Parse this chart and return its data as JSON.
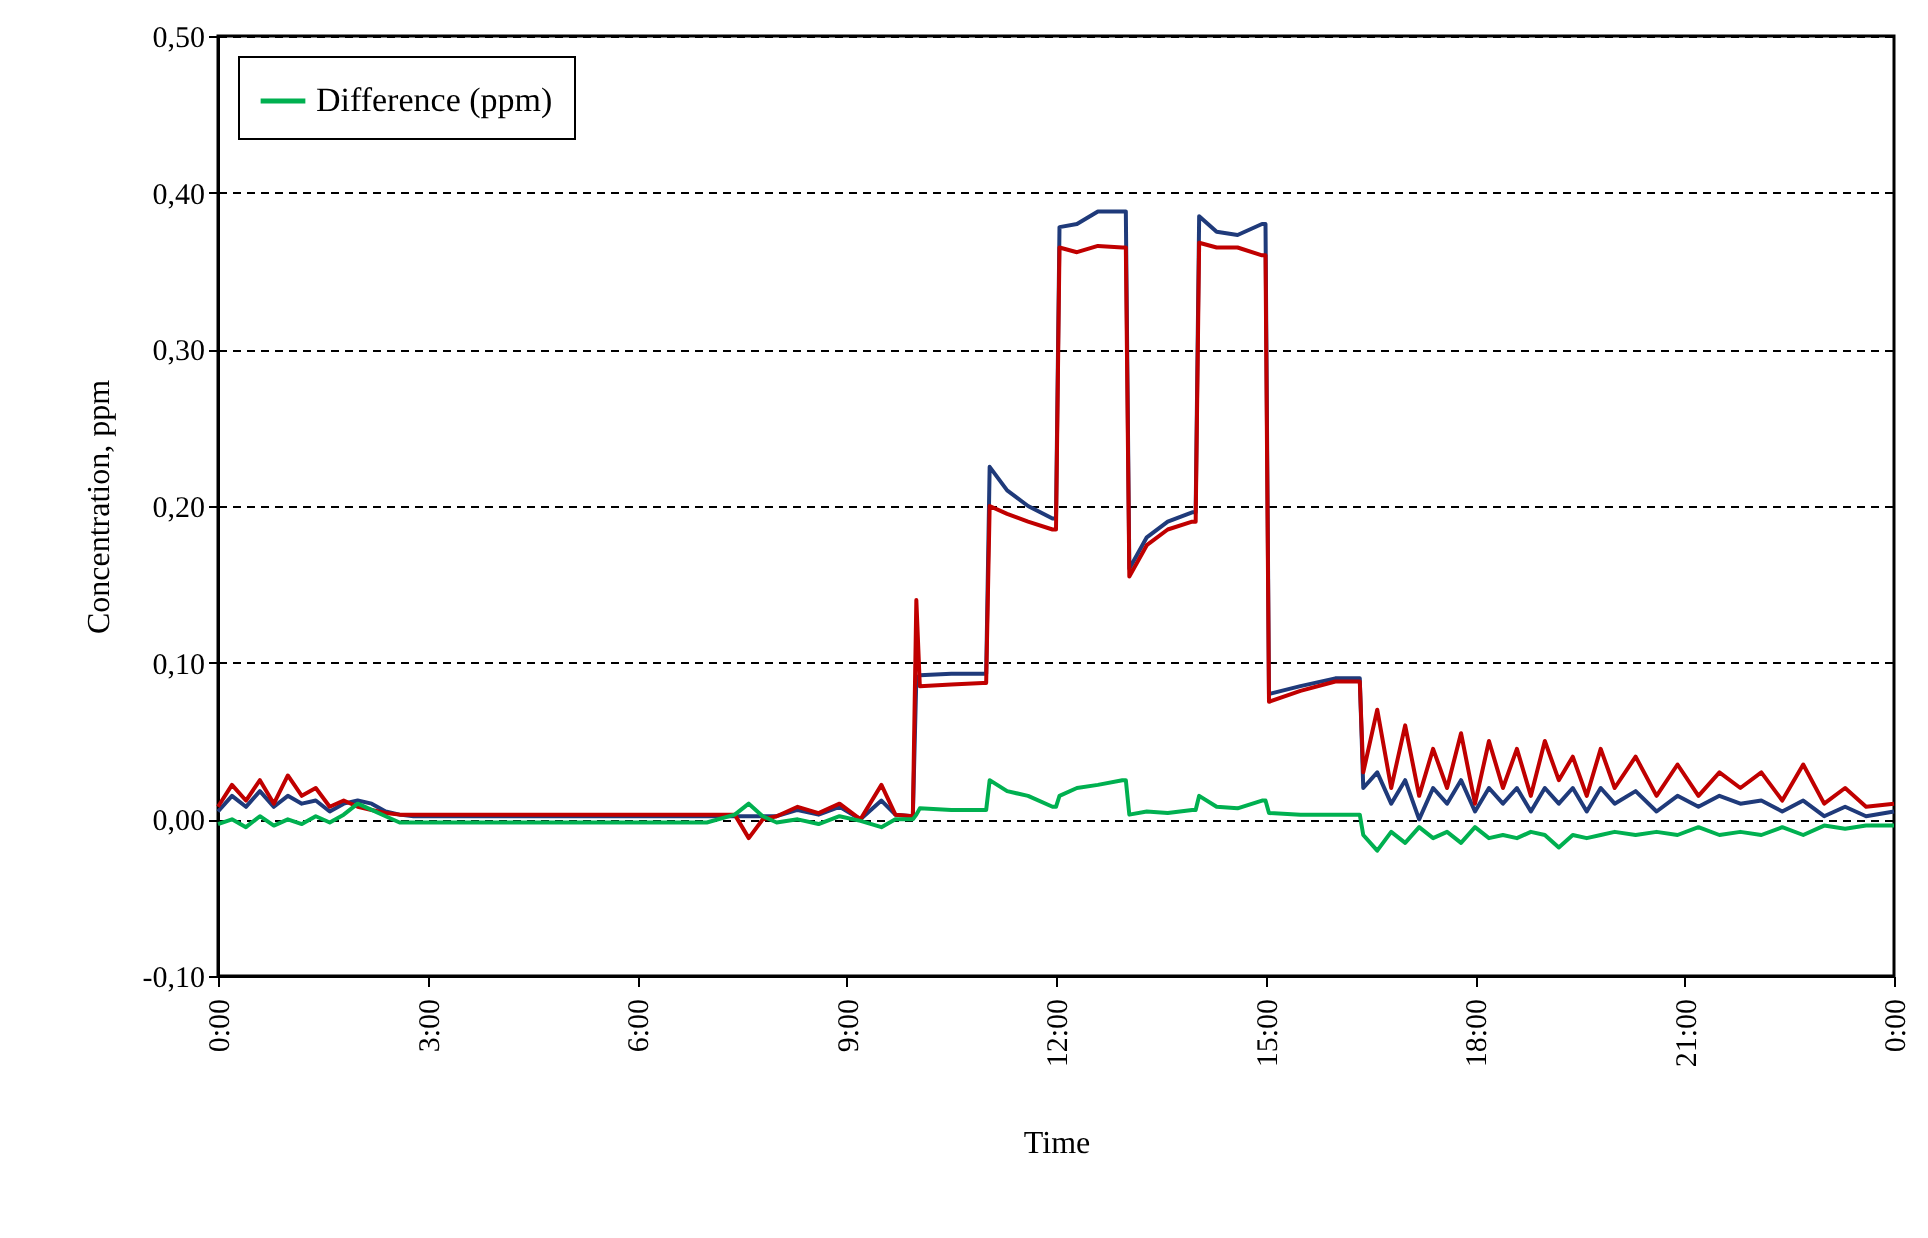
{
  "chart_data": {
    "type": "line",
    "xlabel": "Time",
    "ylabel": "Concentration, ppm",
    "x": [
      0,
      0.2,
      0.4,
      0.6,
      0.8,
      1.0,
      1.2,
      1.4,
      1.6,
      1.8,
      2.0,
      2.2,
      2.4,
      2.6,
      2.8,
      4,
      5,
      6,
      7,
      7.4,
      7.6,
      7.8,
      8.0,
      8.3,
      8.6,
      8.9,
      9.2,
      9.5,
      9.7,
      9.95,
      10.0,
      10.05,
      10.5,
      10.95,
      11.0,
      11.05,
      11.3,
      11.6,
      11.95,
      12.0,
      12.05,
      12.3,
      12.6,
      12.95,
      13.0,
      13.05,
      13.3,
      13.6,
      13.95,
      14.0,
      14.05,
      14.3,
      14.6,
      14.95,
      15.0,
      15.05,
      15.5,
      16.0,
      16.35,
      16.4,
      16.6,
      16.8,
      17.0,
      17.2,
      17.4,
      17.6,
      17.8,
      18.0,
      18.2,
      18.4,
      18.6,
      18.8,
      19.0,
      19.2,
      19.4,
      19.6,
      19.8,
      20.0,
      20.3,
      20.6,
      20.9,
      21.2,
      21.5,
      21.8,
      22.1,
      22.4,
      22.7,
      23.0,
      23.3,
      23.6,
      24.0
    ],
    "series": [
      {
        "color": "#1f3a7a",
        "values": [
          0.005,
          0.015,
          0.008,
          0.018,
          0.008,
          0.015,
          0.01,
          0.012,
          0.005,
          0.01,
          0.012,
          0.01,
          0.005,
          0.003,
          0.002,
          0.002,
          0.002,
          0.002,
          0.002,
          0.002,
          0.002,
          0.002,
          0.002,
          0.006,
          0.003,
          0.008,
          0.0,
          0.012,
          0.003,
          0.002,
          0.09,
          0.092,
          0.093,
          0.093,
          0.093,
          0.225,
          0.21,
          0.2,
          0.192,
          0.192,
          0.378,
          0.38,
          0.388,
          0.388,
          0.388,
          0.16,
          0.18,
          0.19,
          0.196,
          0.196,
          0.385,
          0.375,
          0.373,
          0.38,
          0.38,
          0.08,
          0.085,
          0.09,
          0.09,
          0.02,
          0.03,
          0.01,
          0.025,
          0.0,
          0.02,
          0.01,
          0.025,
          0.005,
          0.02,
          0.01,
          0.02,
          0.005,
          0.02,
          0.01,
          0.02,
          0.005,
          0.02,
          0.01,
          0.018,
          0.005,
          0.015,
          0.008,
          0.015,
          0.01,
          0.012,
          0.005,
          0.012,
          0.002,
          0.008,
          0.002,
          0.005
        ]
      },
      {
        "color": "#c00000",
        "values": [
          0.008,
          0.022,
          0.012,
          0.025,
          0.01,
          0.028,
          0.015,
          0.02,
          0.008,
          0.012,
          0.008,
          0.006,
          0.004,
          0.003,
          0.003,
          0.003,
          0.003,
          0.003,
          0.003,
          0.003,
          -0.012,
          0.0,
          0.002,
          0.008,
          0.004,
          0.01,
          0.0,
          0.022,
          0.003,
          0.002,
          0.14,
          0.085,
          0.086,
          0.087,
          0.087,
          0.2,
          0.195,
          0.19,
          0.185,
          0.185,
          0.365,
          0.362,
          0.366,
          0.365,
          0.365,
          0.155,
          0.175,
          0.185,
          0.19,
          0.19,
          0.368,
          0.365,
          0.365,
          0.36,
          0.36,
          0.075,
          0.082,
          0.088,
          0.088,
          0.03,
          0.07,
          0.02,
          0.06,
          0.015,
          0.045,
          0.02,
          0.055,
          0.01,
          0.05,
          0.02,
          0.045,
          0.015,
          0.05,
          0.025,
          0.04,
          0.015,
          0.045,
          0.02,
          0.04,
          0.015,
          0.035,
          0.015,
          0.03,
          0.02,
          0.03,
          0.012,
          0.035,
          0.01,
          0.02,
          0.008,
          0.01
        ]
      },
      {
        "name": "Difference (ppm)",
        "color": "#00b050",
        "values": [
          -0.003,
          0.0,
          -0.005,
          0.002,
          -0.004,
          0.0,
          -0.003,
          0.002,
          -0.002,
          0.003,
          0.01,
          0.006,
          0.002,
          -0.002,
          -0.002,
          -0.002,
          -0.002,
          -0.002,
          -0.002,
          0.003,
          0.01,
          0.002,
          -0.002,
          0.0,
          -0.003,
          0.002,
          -0.001,
          -0.005,
          0.0,
          0.0,
          0.003,
          0.007,
          0.006,
          0.006,
          0.006,
          0.025,
          0.018,
          0.015,
          0.008,
          0.008,
          0.015,
          0.02,
          0.022,
          0.025,
          0.025,
          0.003,
          0.005,
          0.004,
          0.006,
          0.006,
          0.015,
          0.008,
          0.007,
          0.012,
          0.012,
          0.004,
          0.003,
          0.003,
          0.003,
          -0.01,
          -0.02,
          -0.008,
          -0.015,
          -0.005,
          -0.012,
          -0.008,
          -0.015,
          -0.005,
          -0.012,
          -0.01,
          -0.012,
          -0.008,
          -0.01,
          -0.018,
          -0.01,
          -0.012,
          -0.01,
          -0.008,
          -0.01,
          -0.008,
          -0.01,
          -0.005,
          -0.01,
          -0.008,
          -0.01,
          -0.005,
          -0.01,
          -0.004,
          -0.006,
          -0.004,
          -0.004
        ]
      }
    ],
    "xlim": [
      0,
      24
    ],
    "xticks": [
      {
        "value": 0,
        "label": "0:00"
      },
      {
        "value": 3,
        "label": "3:00"
      },
      {
        "value": 6,
        "label": "6:00"
      },
      {
        "value": 9,
        "label": "9:00"
      },
      {
        "value": 12,
        "label": "12:00"
      },
      {
        "value": 15,
        "label": "15:00"
      },
      {
        "value": 18,
        "label": "18:00"
      },
      {
        "value": 21,
        "label": "21:00"
      },
      {
        "value": 24,
        "label": "0:00"
      }
    ],
    "ylim": [
      -0.1,
      0.5
    ],
    "yticks": [
      {
        "value": -0.1,
        "label": "-0,10"
      },
      {
        "value": 0,
        "label": "0,00"
      },
      {
        "value": 0.1,
        "label": "0,10"
      },
      {
        "value": 0.2,
        "label": "0,20"
      },
      {
        "value": 0.3,
        "label": "0,30"
      },
      {
        "value": 0.4,
        "label": "0,40"
      },
      {
        "value": 0.5,
        "label": "0,50"
      }
    ],
    "grid": "y",
    "legend": "top left",
    "line_style": "solid",
    "marker": "none"
  }
}
